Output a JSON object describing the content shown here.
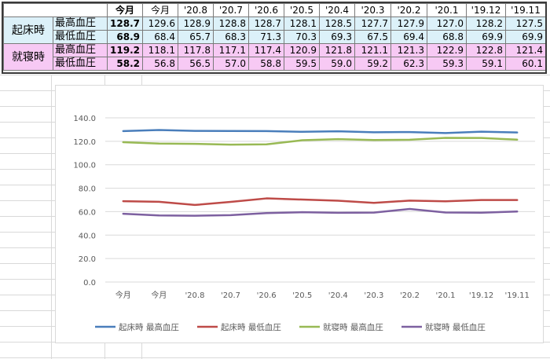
{
  "table": {
    "columns": [
      "今月",
      "今月",
      "'20.8",
      "'20.7",
      "'20.6",
      "'20.5",
      "'20.4",
      "'20.3",
      "'20.2",
      "'20.1",
      "'19.12",
      "'19.11"
    ],
    "groups": [
      {
        "label": "起床時",
        "rows": [
          {
            "metric": "最高血圧",
            "values": [
              "128.7",
              "129.6",
              "128.9",
              "128.8",
              "128.7",
              "128.1",
              "128.5",
              "127.7",
              "127.9",
              "127.0",
              "128.2",
              "127.5"
            ]
          },
          {
            "metric": "最低血圧",
            "values": [
              "68.9",
              "68.4",
              "65.7",
              "68.3",
              "71.3",
              "70.3",
              "69.3",
              "67.5",
              "69.4",
              "68.8",
              "69.9",
              "69.9"
            ]
          }
        ]
      },
      {
        "label": "就寝時",
        "rows": [
          {
            "metric": "最高血圧",
            "values": [
              "119.2",
              "118.1",
              "117.8",
              "117.1",
              "117.4",
              "120.9",
              "121.8",
              "121.1",
              "121.3",
              "122.9",
              "122.8",
              "121.4"
            ]
          },
          {
            "metric": "最低血圧",
            "values": [
              "58.2",
              "56.8",
              "56.5",
              "57.0",
              "58.8",
              "59.5",
              "59.0",
              "59.2",
              "62.3",
              "59.3",
              "59.1",
              "60.1"
            ]
          }
        ]
      }
    ]
  },
  "chart_data": {
    "type": "line",
    "title": "",
    "xlabel": "",
    "ylabel": "",
    "categories": [
      "今月",
      "今月",
      "'20.8",
      "'20.7",
      "'20.6",
      "'20.5",
      "'20.4",
      "'20.3",
      "'20.2",
      "'20.1",
      "'19.12",
      "'19.11"
    ],
    "ylim": [
      0,
      140
    ],
    "yticks": [
      "0.0",
      "20.0",
      "40.0",
      "60.0",
      "80.0",
      "100.0",
      "120.0",
      "140.0"
    ],
    "grid": true,
    "legend_position": "bottom",
    "series": [
      {
        "name": "起床時 最高血圧",
        "color": "#4a7ebb",
        "values": [
          128.7,
          129.6,
          128.9,
          128.8,
          128.7,
          128.1,
          128.5,
          127.7,
          127.9,
          127.0,
          128.2,
          127.5
        ]
      },
      {
        "name": "起床時 最低血圧",
        "color": "#be4b48",
        "values": [
          68.9,
          68.4,
          65.7,
          68.3,
          71.3,
          70.3,
          69.3,
          67.5,
          69.4,
          68.8,
          69.9,
          69.9
        ]
      },
      {
        "name": "就寝時 最高血圧",
        "color": "#98b954",
        "values": [
          119.2,
          118.1,
          117.8,
          117.1,
          117.4,
          120.9,
          121.8,
          121.1,
          121.3,
          122.9,
          122.8,
          121.4
        ]
      },
      {
        "name": "就寝時 最低血圧",
        "color": "#7d60a0",
        "values": [
          58.2,
          56.8,
          56.5,
          57.0,
          58.8,
          59.5,
          59.0,
          59.2,
          62.3,
          59.3,
          59.1,
          60.1
        ]
      }
    ]
  }
}
